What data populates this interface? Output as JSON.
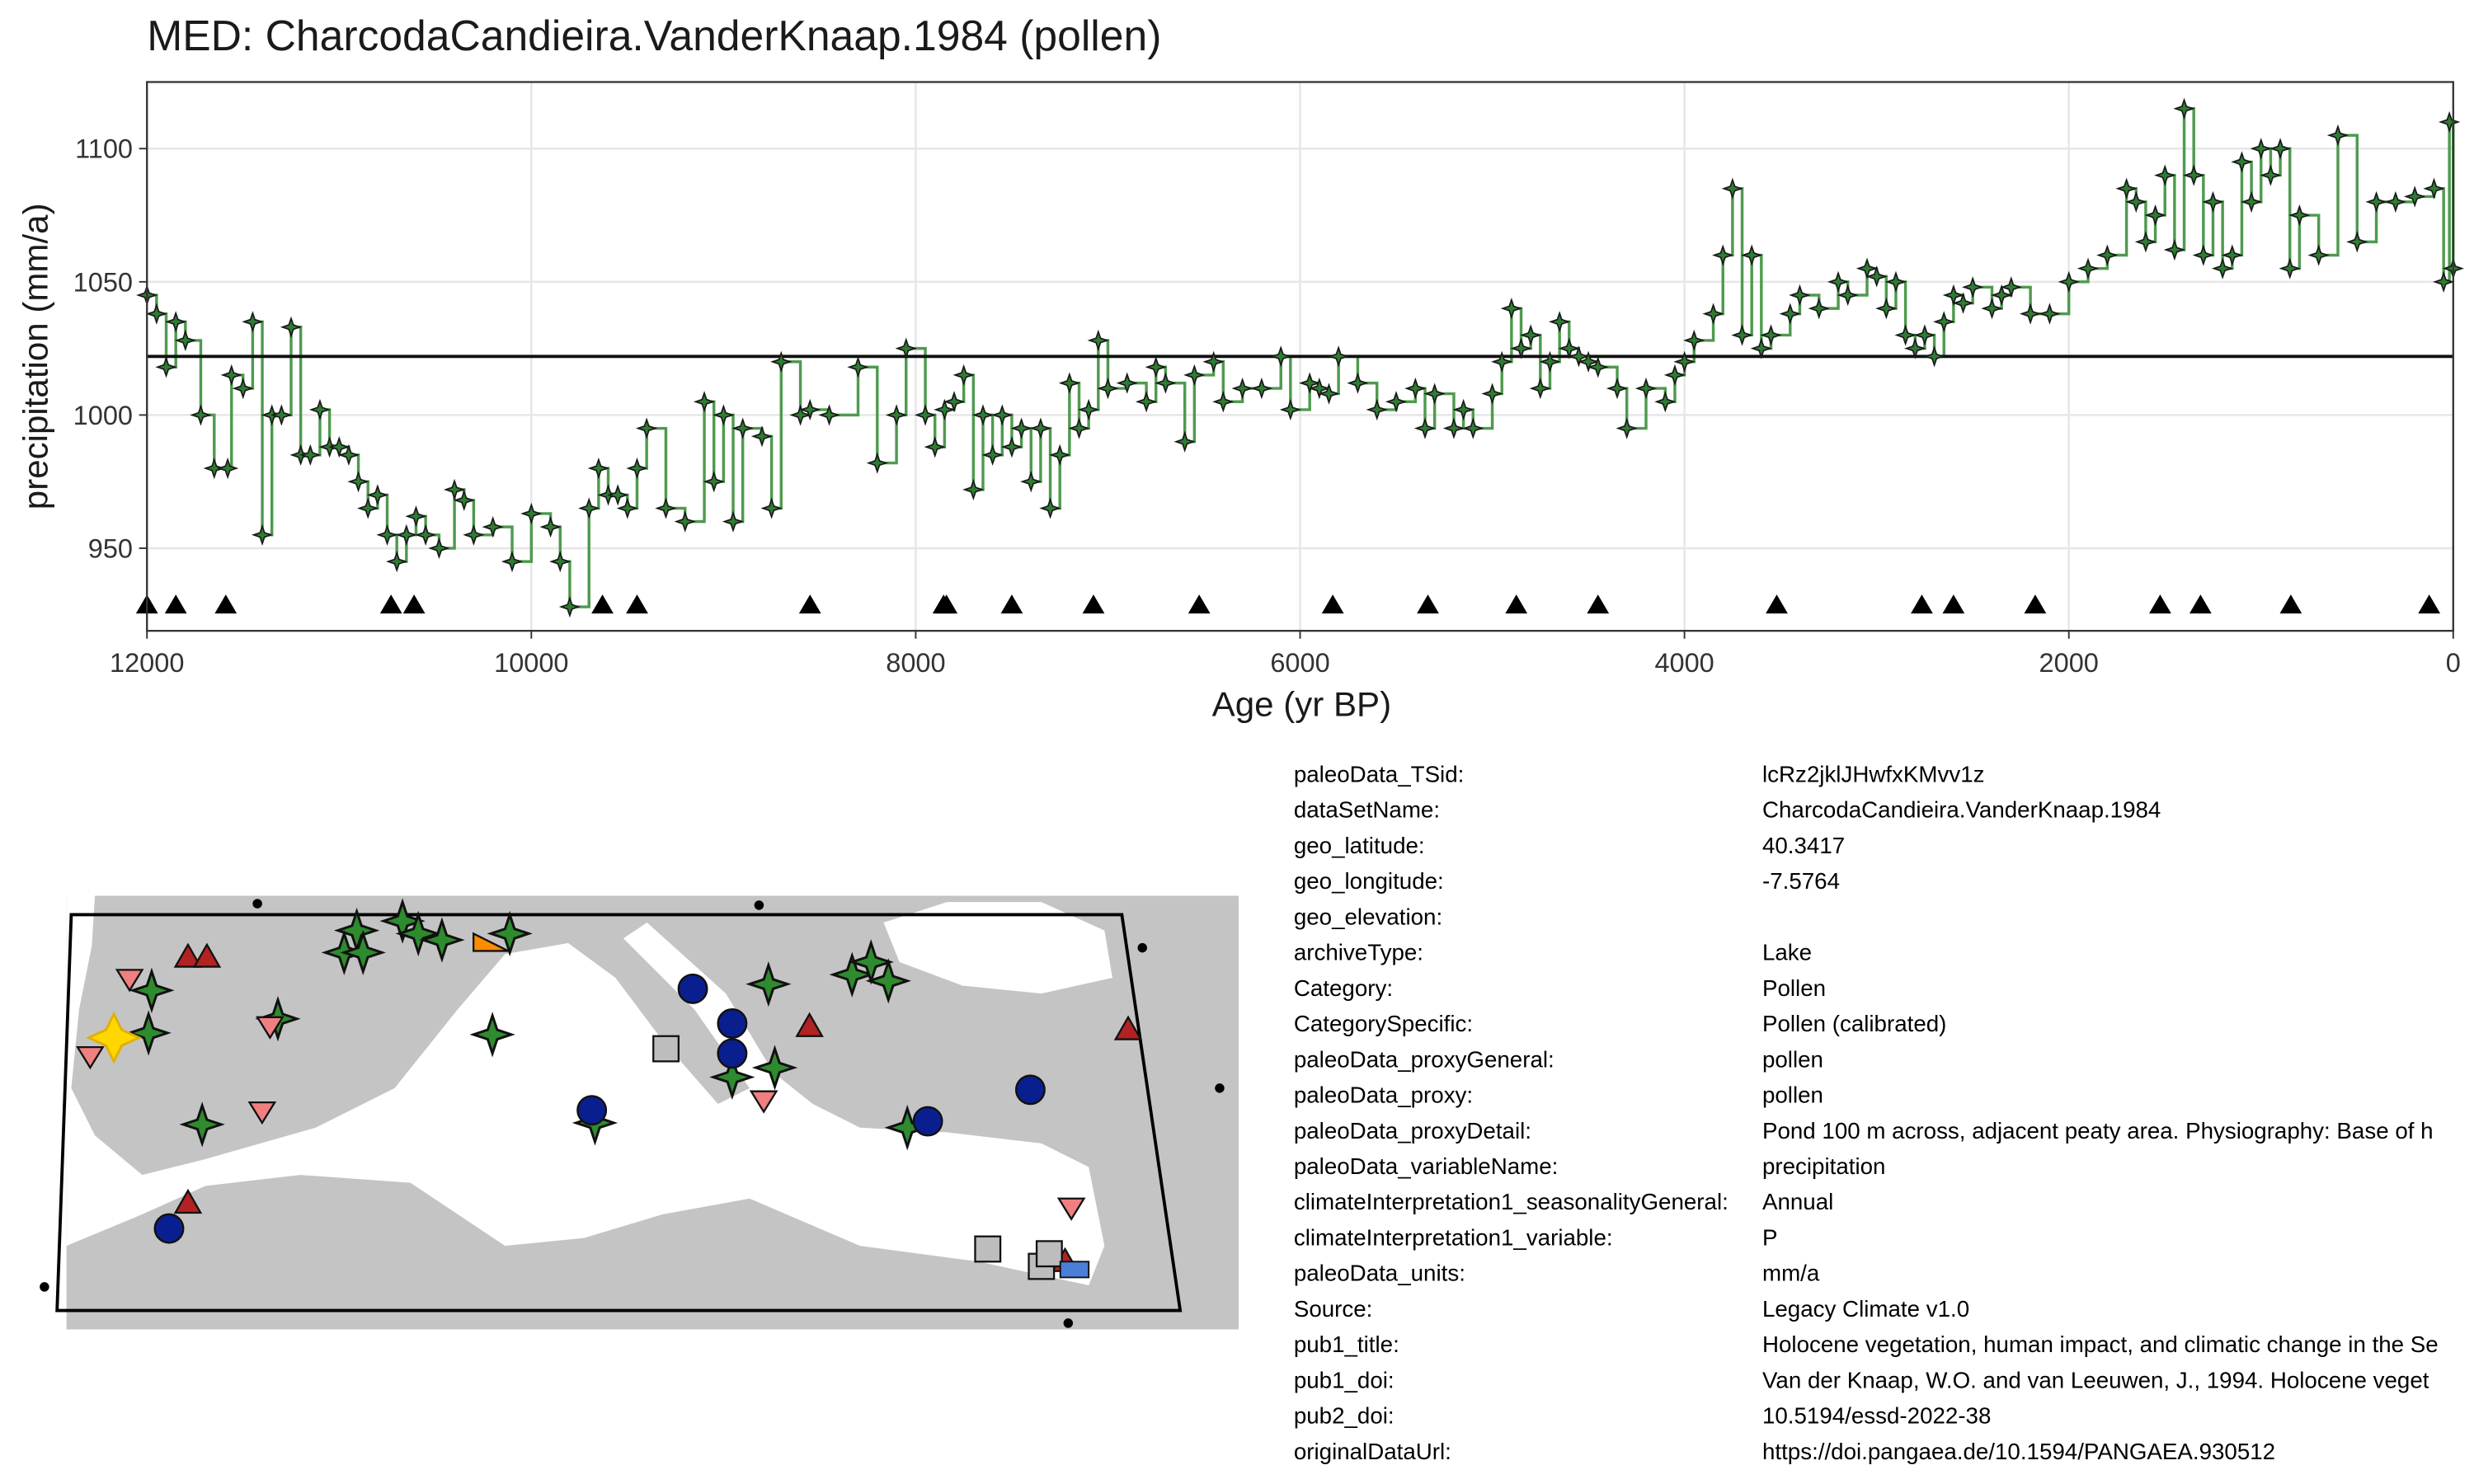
{
  "chart_data": {
    "type": "line",
    "step": true,
    "title": "MED: CharcodaCandieira.VanderKnaap.1984 (pollen)",
    "x_label": "Age (yr BP)",
    "y_label": "precipitation (mm/a)",
    "color": "#4f9a4f",
    "point_color": "#2e7d32",
    "x": [
      12000,
      11950,
      11900,
      11850,
      11800,
      11720,
      11650,
      11580,
      11560,
      11500,
      11450,
      11400,
      11350,
      11300,
      11250,
      11200,
      11150,
      11100,
      11050,
      11000,
      10950,
      10900,
      10850,
      10800,
      10750,
      10700,
      10650,
      10600,
      10550,
      10480,
      10400,
      10350,
      10300,
      10200,
      10100,
      10000,
      9900,
      9850,
      9800,
      9700,
      9650,
      9600,
      9550,
      9500,
      9450,
      9400,
      9300,
      9200,
      9100,
      9050,
      9000,
      8950,
      8900,
      8800,
      8750,
      8700,
      8600,
      8550,
      8450,
      8300,
      8200,
      8100,
      8050,
      7950,
      7900,
      7850,
      7800,
      7750,
      7700,
      7650,
      7600,
      7550,
      7500,
      7450,
      7400,
      7350,
      7300,
      7250,
      7200,
      7150,
      7100,
      7050,
      7000,
      6900,
      6800,
      6750,
      6700,
      6600,
      6550,
      6450,
      6400,
      6300,
      6200,
      6100,
      6050,
      5950,
      5900,
      5850,
      5800,
      5700,
      5600,
      5500,
      5400,
      5350,
      5300,
      5200,
      5150,
      5100,
      5000,
      4950,
      4900,
      4850,
      4800,
      4750,
      4700,
      4650,
      4600,
      4550,
      4500,
      4450,
      4350,
      4300,
      4200,
      4100,
      4050,
      4000,
      3950,
      3850,
      3800,
      3750,
      3700,
      3650,
      3600,
      3550,
      3450,
      3400,
      3300,
      3200,
      3150,
      3050,
      3000,
      2950,
      2900,
      2850,
      2800,
      2750,
      2700,
      2650,
      2600,
      2550,
      2500,
      2400,
      2350,
      2300,
      2200,
      2100,
      2000,
      1900,
      1800,
      1700,
      1650,
      1600,
      1550,
      1500,
      1450,
      1400,
      1350,
      1300,
      1250,
      1200,
      1150,
      1100,
      1050,
      1000,
      950,
      900,
      850,
      800,
      700,
      600,
      500,
      400,
      300,
      200,
      100,
      50,
      20,
      0
    ],
    "values": [
      1045,
      1038,
      1018,
      1035,
      1028,
      1000,
      980,
      980,
      1015,
      1010,
      1035,
      955,
      1000,
      1000,
      1033,
      985,
      985,
      1002,
      988,
      988,
      985,
      975,
      965,
      970,
      955,
      945,
      955,
      962,
      955,
      950,
      972,
      968,
      955,
      958,
      945,
      963,
      958,
      945,
      928,
      965,
      980,
      970,
      970,
      965,
      980,
      995,
      965,
      960,
      1005,
      975,
      1000,
      960,
      995,
      992,
      965,
      1020,
      1000,
      1002,
      1000,
      1018,
      982,
      1000,
      1025,
      1000,
      988,
      1002,
      1005,
      1015,
      972,
      1000,
      985,
      1000,
      988,
      995,
      975,
      995,
      965,
      985,
      1012,
      995,
      1002,
      1028,
      1010,
      1012,
      1005,
      1018,
      1012,
      990,
      1015,
      1020,
      1005,
      1010,
      1010,
      1022,
      1002,
      1012,
      1010,
      1008,
      1022,
      1012,
      1002,
      1005,
      1010,
      995,
      1008,
      995,
      1002,
      995,
      1008,
      1020,
      1040,
      1025,
      1030,
      1010,
      1020,
      1035,
      1025,
      1022,
      1020,
      1018,
      1010,
      995,
      1010,
      1005,
      1015,
      1020,
      1028,
      1038,
      1060,
      1085,
      1030,
      1060,
      1025,
      1030,
      1038,
      1045,
      1040,
      1050,
      1045,
      1055,
      1052,
      1040,
      1050,
      1030,
      1025,
      1030,
      1022,
      1035,
      1045,
      1042,
      1048,
      1040,
      1045,
      1048,
      1038,
      1038,
      1050,
      1055,
      1060,
      1085,
      1080,
      1065,
      1075,
      1090,
      1062,
      1115,
      1090,
      1060,
      1080,
      1055,
      1060,
      1095,
      1080,
      1100,
      1090,
      1100,
      1055,
      1075,
      1060,
      1105,
      1065,
      1080,
      1080,
      1082,
      1085,
      1050,
      1110,
      1055
    ],
    "mean": 1022,
    "age_control": [
      12000,
      11850,
      11590,
      10730,
      10610,
      9630,
      9450,
      8550,
      7855,
      7840,
      7500,
      7075,
      6525,
      5830,
      5335,
      4875,
      4450,
      3520,
      2765,
      2600,
      2175,
      1525,
      1315,
      845,
      125
    ],
    "xlim": [
      12000,
      0
    ],
    "ylim": [
      919,
      1125
    ],
    "xticks": [
      12000,
      10000,
      8000,
      6000,
      4000,
      2000,
      0
    ],
    "yticks": [
      950,
      1000,
      1050,
      1100
    ],
    "grid": true
  },
  "metadata": {
    "rows": [
      {
        "key": "paleoData_TSid:",
        "value": "lcRz2jklJHwfxKMvv1z"
      },
      {
        "key": "dataSetName:",
        "value": "CharcodaCandieira.VanderKnaap.1984"
      },
      {
        "key": "geo_latitude:",
        "value": 40.3417
      },
      {
        "key": "geo_longitude:",
        "value": -7.5764
      },
      {
        "key": "geo_elevation:"
      },
      {
        "key": "archiveType:",
        "value": "Lake"
      },
      {
        "key": "Category:",
        "value": "Pollen"
      },
      {
        "key": "CategorySpecific:",
        "value": "Pollen (calibrated)"
      },
      {
        "key": "paleoData_proxyGeneral:",
        "value": "pollen"
      },
      {
        "key": "paleoData_proxy:",
        "value": "pollen"
      },
      {
        "key": "paleoData_proxyDetail:",
        "value": "Pond 100 m across, adjacent peaty area. Physiography: Base of h"
      },
      {
        "key": "paleoData_variableName:",
        "value": "precipitation"
      },
      {
        "key": "climateInterpretation1_seasonalityGeneral:",
        "value": "Annual"
      },
      {
        "key": "climateInterpretation1_variable:",
        "value": "P"
      },
      {
        "key": "paleoData_units:",
        "value": "mm/a"
      },
      {
        "key": "Source:",
        "value": "Legacy Climate v1.0"
      },
      {
        "key": "pub1_title:",
        "value": "Holocene vegetation, human impact, and climatic change in the Se"
      },
      {
        "key": "pub1_doi:",
        "value": "Van der Knaap, W.O. and van Leeuwen, J., 1994. Holocene veget"
      },
      {
        "key": "pub2_doi:",
        "value": "10.5194/essd-2022-38"
      },
      {
        "key": "originalDataUrl:",
        "value": "https://doi.pangaea.de/10.1594/PANGAEA.930512"
      }
    ]
  }
}
